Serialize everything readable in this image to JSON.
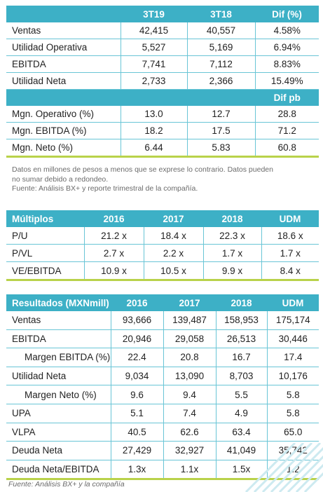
{
  "colors": {
    "header_bg": "#3db0c6",
    "grid": "#69c5d6",
    "accent_line": "#b9d24a"
  },
  "table1": {
    "headers": [
      "",
      "3T19",
      "3T18",
      "Dif (%)"
    ],
    "rows": [
      [
        "Ventas",
        "42,415",
        "40,557",
        "4.58%"
      ],
      [
        "Utilidad Operativa",
        "5,527",
        "5,169",
        "6.94%"
      ],
      [
        "EBITDA",
        "7,741",
        "7,112",
        "8.83%"
      ],
      [
        "Utilidad Neta",
        "2,733",
        "2,366",
        "15.49%"
      ]
    ],
    "subheader": [
      "",
      "",
      "",
      "Dif pb"
    ],
    "rows2": [
      [
        "Mgn. Operativo (%)",
        "13.0",
        "12.7",
        "28.8"
      ],
      [
        "Mgn. EBITDA (%)",
        "18.2",
        "17.5",
        "71.2"
      ],
      [
        "Mgn. Neto (%)",
        "6.44",
        "5.83",
        "60.8"
      ]
    ]
  },
  "note": {
    "line1": "Datos en millones de pesos a menos que se exprese lo contrario. Datos pueden",
    "line2": "no sumar debido a redondeo.",
    "line3": "Fuente: Análisis BX+ y reporte trimestral de la compañía."
  },
  "table2": {
    "headers": [
      "Múltiplos",
      "2016",
      "2017",
      "2018",
      "UDM"
    ],
    "rows": [
      [
        "P/U",
        "21.2 x",
        "18.4 x",
        "22.3 x",
        "18.6 x"
      ],
      [
        "P/VL",
        "2.7 x",
        "2.2 x",
        "1.7 x",
        "1.7 x"
      ],
      [
        "VE/EBITDA",
        "10.9 x",
        "10.5 x",
        "9.9 x",
        "8.4 x"
      ]
    ]
  },
  "table3": {
    "headers": [
      "Resultados (MXNmill)",
      "2016",
      "2017",
      "2018",
      "UDM"
    ],
    "rows": [
      [
        "Ventas",
        "93,666",
        "139,487",
        "158,953",
        "175,174"
      ],
      [
        "EBITDA",
        "20,946",
        "29,058",
        "26,513",
        "30,446"
      ],
      [
        "Margen EBITDA (%)",
        "22.4",
        "20.8",
        "16.7",
        "17.4"
      ],
      [
        "Utilidad Neta",
        "9,034",
        "13,090",
        "8,703",
        "10,176"
      ],
      [
        "Margen Neto (%)",
        "9.6",
        "9.4",
        "5.5",
        "5.8"
      ],
      [
        "UPA",
        "5.1",
        "7.4",
        "4.9",
        "5.8"
      ],
      [
        "VLPA",
        "40.5",
        "62.6",
        "63.4",
        "65.0"
      ],
      [
        "Deuda Neta",
        "27,429",
        "32,927",
        "41,049",
        "35,742"
      ],
      [
        "Deuda Neta/EBITDA",
        "1.3x",
        "1.1x",
        "1.5x",
        "1.2"
      ]
    ],
    "indented_rows": [
      2,
      4
    ]
  },
  "source": "Fuente: Análisis BX+ y la compañía"
}
